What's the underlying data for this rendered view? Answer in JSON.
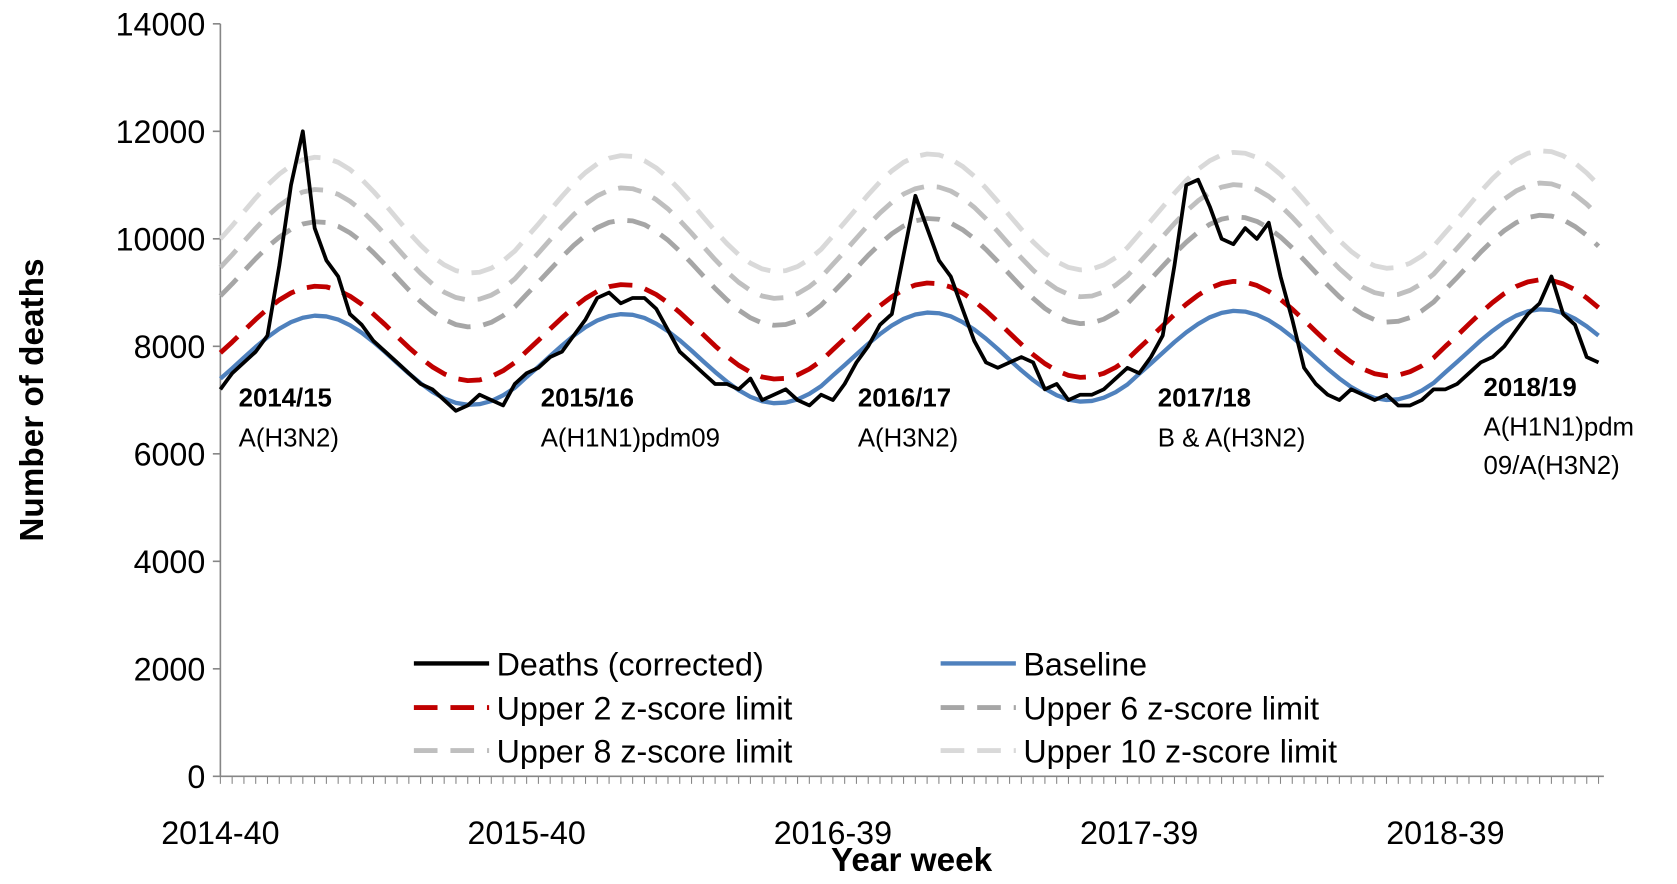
{
  "chart_data": {
    "type": "line",
    "xlabel": "Year week",
    "ylabel": "Number of deaths",
    "categories": [
      "2014-40",
      null,
      null,
      null,
      null,
      null,
      null,
      null,
      null,
      null,
      null,
      null,
      null,
      null,
      null,
      null,
      null,
      null,
      null,
      null,
      null,
      null,
      null,
      null,
      null,
      null,
      "2015-40",
      null,
      null,
      null,
      null,
      null,
      null,
      null,
      null,
      null,
      null,
      null,
      null,
      null,
      null,
      null,
      null,
      null,
      null,
      null,
      null,
      null,
      null,
      null,
      null,
      null,
      "2016-39",
      null,
      null,
      null,
      null,
      null,
      null,
      null,
      null,
      null,
      null,
      null,
      null,
      null,
      null,
      null,
      null,
      null,
      null,
      null,
      null,
      null,
      null,
      null,
      null,
      null,
      "2017-39",
      null,
      null,
      null,
      null,
      null,
      null,
      null,
      null,
      null,
      null,
      null,
      null,
      null,
      null,
      null,
      null,
      null,
      null,
      null,
      null,
      null,
      null,
      null,
      null,
      null,
      "2018-39",
      null,
      null,
      null,
      null,
      null,
      null,
      null,
      null,
      null,
      null,
      null,
      null,
      null
    ],
    "ylim": [
      0,
      14000
    ],
    "yticks": [
      0,
      2000,
      4000,
      6000,
      8000,
      10000,
      12000,
      14000
    ],
    "grid": false,
    "series": [
      {
        "name": "Deaths (corrected)",
        "color": "#000000",
        "dashed": false,
        "values": [
          7200,
          7500,
          7700,
          7900,
          8200,
          9500,
          11000,
          12000,
          10200,
          9600,
          9300,
          8600,
          8400,
          8100,
          7900,
          7700,
          7500,
          7300,
          7200,
          7000,
          6800,
          6900,
          7100,
          7000,
          6900,
          7300,
          7500,
          7600,
          7800,
          7900,
          8200,
          8500,
          8900,
          9000,
          8800,
          8900,
          8900,
          8700,
          8300,
          7900,
          7700,
          7500,
          7300,
          7300,
          7200,
          7400,
          7000,
          7100,
          7200,
          7000,
          6900,
          7100,
          7000,
          7300,
          7700,
          8000,
          8400,
          8600,
          9700,
          10800,
          10200,
          9600,
          9300,
          8700,
          8100,
          7700,
          7600,
          7700,
          7800,
          7700,
          7200,
          7300,
          7000,
          7100,
          7100,
          7200,
          7400,
          7600,
          7500,
          7800,
          8200,
          9500,
          11000,
          11100,
          10600,
          10000,
          9900,
          10200,
          10000,
          10300,
          9300,
          8500,
          7600,
          7300,
          7100,
          7000,
          7200,
          7100,
          7000,
          7100,
          6900,
          6900,
          7000,
          7200,
          7200,
          7300,
          7500,
          7700,
          7800,
          8000,
          8300,
          8600,
          8800,
          9300,
          8600,
          8400,
          7800,
          7700
        ]
      },
      {
        "name": "Baseline",
        "color": "#4f81bd",
        "dashed": false,
        "values": [
          7399,
          7590,
          7790,
          7987,
          8169,
          8327,
          8450,
          8532,
          8569,
          8556,
          8497,
          8393,
          8252,
          8081,
          7890,
          7690,
          7493,
          7311,
          7153,
          7030,
          6948,
          6911,
          6924,
          6983,
          7087,
          7228,
          7429,
          7620,
          7820,
          8017,
          8199,
          8357,
          8480,
          8562,
          8599,
          8586,
          8527,
          8423,
          8282,
          8111,
          7920,
          7720,
          7523,
          7341,
          7183,
          7060,
          6978,
          6941,
          6954,
          7013,
          7117,
          7258,
          7459,
          7650,
          7850,
          8047,
          8229,
          8387,
          8510,
          8592,
          8629,
          8616,
          8557,
          8453,
          8312,
          8141,
          7950,
          7750,
          7553,
          7371,
          7213,
          7090,
          7008,
          6971,
          6984,
          7043,
          7147,
          7288,
          7489,
          7680,
          7880,
          8077,
          8259,
          8417,
          8540,
          8622,
          8659,
          8646,
          8587,
          8483,
          8342,
          8171,
          7980,
          7780,
          7583,
          7401,
          7243,
          7120,
          7038,
          7001,
          7014,
          7073,
          7177,
          7318,
          7519,
          7710,
          7910,
          8107,
          8289,
          8447,
          8570,
          8652,
          8689,
          8676,
          8617,
          8513,
          8372,
          8201
        ]
      },
      {
        "name": "Upper 2 z-score limit",
        "color": "#c00000",
        "dashed": true,
        "values": [
          7879,
          8081,
          8293,
          8502,
          8695,
          8862,
          8993,
          9080,
          9118,
          9106,
          9042,
          8933,
          8783,
          8601,
          8399,
          8187,
          7978,
          7785,
          7618,
          7487,
          7400,
          7362,
          7374,
          7438,
          7547,
          7697,
          7909,
          8111,
          8323,
          8532,
          8725,
          8892,
          9023,
          9110,
          9148,
          9136,
          9072,
          8963,
          8813,
          8631,
          8429,
          8217,
          8008,
          7815,
          7648,
          7517,
          7430,
          7392,
          7404,
          7468,
          7577,
          7727,
          7939,
          8141,
          8353,
          8562,
          8755,
          8922,
          9053,
          9140,
          9178,
          9166,
          9102,
          8993,
          8843,
          8661,
          8459,
          8247,
          8038,
          7845,
          7678,
          7547,
          7460,
          7422,
          7434,
          7498,
          7607,
          7757,
          7969,
          8171,
          8383,
          8592,
          8785,
          8952,
          9083,
          9170,
          9208,
          9196,
          9132,
          9023,
          8873,
          8691,
          8489,
          8277,
          8068,
          7875,
          7708,
          7577,
          7490,
          7452,
          7464,
          7528,
          7637,
          7787,
          7999,
          8201,
          8413,
          8622,
          8815,
          8982,
          9113,
          9200,
          9238,
          9226,
          9162,
          9053,
          8903,
          8721
        ]
      },
      {
        "name": "Upper 6 z-score limit",
        "color": "#a6a6a6",
        "dashed": true,
        "values": [
          8938,
          9163,
          9399,
          9632,
          9847,
          10033,
          10179,
          10276,
          10318,
          10304,
          10234,
          10111,
          9945,
          9742,
          9517,
          9281,
          9048,
          8833,
          8647,
          8501,
          8404,
          8362,
          8376,
          8446,
          8569,
          8735,
          8968,
          9193,
          9429,
          9662,
          9877,
          10063,
          10209,
          10306,
          10348,
          10334,
          10264,
          10141,
          9975,
          9772,
          9547,
          9311,
          9078,
          8863,
          8677,
          8531,
          8434,
          8392,
          8406,
          8476,
          8599,
          8765,
          8998,
          9223,
          9459,
          9692,
          9907,
          10093,
          10239,
          10336,
          10378,
          10364,
          10294,
          10171,
          10005,
          9802,
          9577,
          9341,
          9108,
          8893,
          8707,
          8561,
          8464,
          8422,
          8436,
          8506,
          8629,
          8795,
          9028,
          9253,
          9489,
          9722,
          9937,
          10123,
          10269,
          10366,
          10408,
          10394,
          10324,
          10201,
          10035,
          9832,
          9607,
          9371,
          9138,
          8923,
          8737,
          8591,
          8494,
          8452,
          8466,
          8536,
          8659,
          8825,
          9058,
          9283,
          9519,
          9752,
          9967,
          10153,
          10299,
          10396,
          10438,
          10424,
          10354,
          10231,
          10065,
          9862
        ]
      },
      {
        "name": "Upper 8 z-score limit",
        "color": "#bfbfbf",
        "dashed": true,
        "values": [
          9467,
          9704,
          9952,
          10196,
          10423,
          10618,
          10771,
          10873,
          10918,
          10903,
          10829,
          10701,
          10526,
          10313,
          10076,
          9828,
          9584,
          9357,
          9162,
          9009,
          8907,
          8862,
          8877,
          8951,
          9079,
          9254,
          9497,
          9734,
          9982,
          10226,
          10453,
          10648,
          10801,
          10903,
          10948,
          10933,
          10859,
          10731,
          10556,
          10343,
          10106,
          9858,
          9614,
          9387,
          9192,
          9039,
          8937,
          8892,
          8907,
          8981,
          9109,
          9284,
          9527,
          9764,
          10012,
          10256,
          10483,
          10678,
          10831,
          10933,
          10978,
          10963,
          10889,
          10761,
          10586,
          10373,
          10136,
          9888,
          9644,
          9417,
          9222,
          9069,
          8967,
          8922,
          8937,
          9011,
          9139,
          9314,
          9557,
          9794,
          10042,
          10286,
          10513,
          10708,
          10861,
          10963,
          11008,
          10993,
          10919,
          10791,
          10616,
          10403,
          10166,
          9918,
          9674,
          9447,
          9252,
          9099,
          8997,
          8952,
          8967,
          9041,
          9169,
          9344,
          9587,
          9824,
          10072,
          10316,
          10543,
          10738,
          10891,
          10993,
          11038,
          11023,
          10949,
          10821,
          10646,
          10433
        ]
      },
      {
        "name": "Upper 10 z-score limit",
        "color": "#d9d9d9",
        "dashed": true,
        "values": [
          9997,
          10245,
          10505,
          10761,
          10999,
          11204,
          11364,
          11471,
          11518,
          11502,
          11425,
          11290,
          11106,
          10883,
          10635,
          10375,
          10119,
          9881,
          9676,
          9516,
          9409,
          9362,
          9378,
          9455,
          9590,
          9774,
          10027,
          10275,
          10535,
          10791,
          11029,
          11234,
          11394,
          11501,
          11548,
          11532,
          11455,
          11320,
          11136,
          10913,
          10665,
          10405,
          10149,
          9911,
          9706,
          9546,
          9439,
          9392,
          9408,
          9485,
          9620,
          9804,
          10057,
          10305,
          10565,
          10821,
          11059,
          11264,
          11424,
          11531,
          11578,
          11562,
          11485,
          11350,
          11166,
          10943,
          10695,
          10435,
          10179,
          9941,
          9736,
          9576,
          9469,
          9422,
          9438,
          9515,
          9650,
          9834,
          10087,
          10335,
          10595,
          10851,
          11089,
          11294,
          11454,
          11561,
          11608,
          11592,
          11515,
          11380,
          11196,
          10973,
          10725,
          10465,
          10209,
          9971,
          9766,
          9606,
          9499,
          9452,
          9468,
          9545,
          9680,
          9864,
          10117,
          10365,
          10625,
          10881,
          11119,
          11324,
          11484,
          11591,
          11638,
          11622,
          11545,
          11410,
          11226,
          11003
        ]
      }
    ],
    "legend": "lower center",
    "annotations": [
      {
        "title": "2014/15",
        "lines": [
          "A(H3N2)"
        ]
      },
      {
        "title": "2015/16",
        "lines": [
          "A(H1N1)pdm09"
        ]
      },
      {
        "title": "2016/17",
        "lines": [
          "A(H3N2)"
        ]
      },
      {
        "title": "2017/18",
        "lines": [
          "B & A(H3N2)"
        ]
      },
      {
        "title": "2018/19",
        "lines": [
          "A(H1N1)pdm",
          "09/A(H3N2)"
        ]
      }
    ]
  }
}
